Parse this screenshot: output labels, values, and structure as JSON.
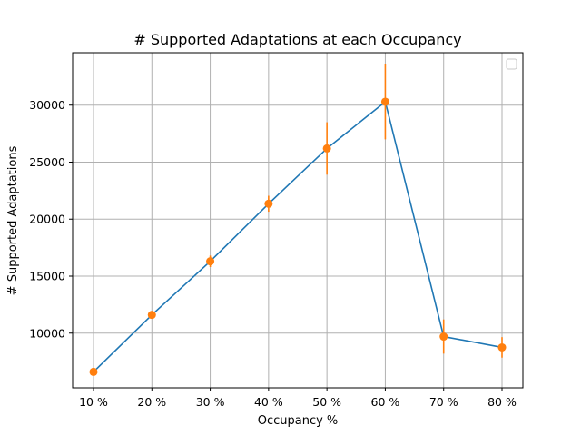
{
  "chart_data": {
    "type": "line",
    "title": "# Supported Adaptations at each Occupancy",
    "xlabel": "Occupancy %",
    "ylabel": "# Supported Adaptations",
    "categories": [
      "10 %",
      "20 %",
      "30 %",
      "40 %",
      "50 %",
      "60 %",
      "70 %",
      "80 %"
    ],
    "series": [
      {
        "values": [
          6600,
          11600,
          16300,
          21350,
          26200,
          30300,
          9700,
          8750
        ],
        "error": [
          100,
          250,
          500,
          700,
          2300,
          3300,
          1500,
          900
        ],
        "line_color": "#1f77b4",
        "marker_color": "#ff7f0e"
      }
    ],
    "ylim": [
      5200,
      34600
    ],
    "yticks": [
      10000,
      15000,
      20000,
      25000,
      30000
    ],
    "ytick_labels": [
      "10000",
      "15000",
      "20000",
      "25000",
      "30000"
    ],
    "grid": true,
    "legend": "top-right (empty)"
  }
}
